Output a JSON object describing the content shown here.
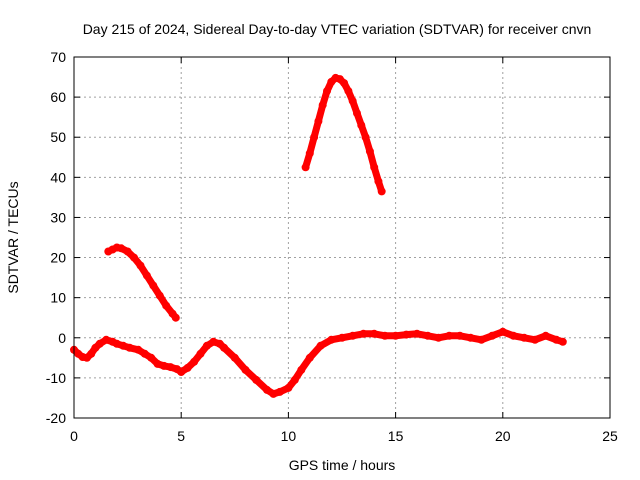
{
  "chart_data": {
    "type": "scatter",
    "title": "Day 215 of 2024, Sidereal Day-to-day VTEC variation (SDTVAR) for receiver cnvn",
    "xlabel": "GPS time / hours",
    "ylabel": "SDTVAR / TECUs",
    "xlim": [
      0,
      25
    ],
    "ylim": [
      -20,
      70
    ],
    "xticks": [
      0,
      5,
      10,
      15,
      20,
      25
    ],
    "yticks": [
      -20,
      -10,
      0,
      10,
      20,
      30,
      40,
      50,
      60,
      70
    ],
    "grid": true,
    "legend": "none",
    "series_color": "#ff0000",
    "series": [
      {
        "name": "segment-low-1",
        "x": [
          0.0,
          0.2,
          0.4,
          0.6,
          0.8,
          1.0,
          1.2,
          1.5,
          1.8,
          2.0,
          2.3,
          2.6,
          3.0,
          3.3,
          3.6,
          3.9,
          4.2,
          4.5,
          4.8,
          5.0
        ],
        "y": [
          -3.0,
          -4.0,
          -4.8,
          -5.0,
          -4.0,
          -2.5,
          -1.5,
          -0.5,
          -1.0,
          -1.5,
          -2.0,
          -2.5,
          -3.0,
          -4.0,
          -5.0,
          -6.5,
          -7.0,
          -7.3,
          -7.8,
          -8.5
        ]
      },
      {
        "name": "segment-low-2",
        "x": [
          5.0,
          5.3,
          5.6,
          5.9,
          6.2,
          6.5,
          6.8,
          7.0,
          7.5,
          8.0,
          8.5,
          9.0,
          9.3,
          9.6,
          10.0,
          10.3,
          10.6,
          11.0,
          11.5,
          12.0,
          12.5,
          13.0,
          13.5,
          14.0,
          14.5,
          15.0,
          15.5,
          16.0,
          16.5,
          17.0,
          17.5,
          18.0,
          18.5,
          19.0,
          19.5,
          20.0,
          20.5,
          21.0,
          21.5,
          22.0,
          22.5,
          22.8
        ],
        "y": [
          -8.5,
          -7.5,
          -6.0,
          -4.0,
          -2.0,
          -1.0,
          -1.5,
          -2.5,
          -5.0,
          -8.0,
          -10.5,
          -13.0,
          -14.0,
          -13.5,
          -12.5,
          -10.5,
          -8.0,
          -5.0,
          -2.0,
          -0.5,
          0.0,
          0.5,
          1.0,
          1.0,
          0.5,
          0.5,
          0.8,
          1.0,
          0.5,
          0.0,
          0.5,
          0.5,
          0.0,
          -0.5,
          0.5,
          1.5,
          0.5,
          0.0,
          -0.5,
          0.5,
          -0.5,
          -1.0
        ]
      },
      {
        "name": "segment-hump-1",
        "x": [
          1.6,
          1.8,
          2.0,
          2.2,
          2.5,
          2.8,
          3.1,
          3.4,
          3.7,
          4.0,
          4.3,
          4.6,
          4.75
        ],
        "y": [
          21.5,
          22.0,
          22.5,
          22.3,
          21.5,
          20.0,
          18.0,
          15.5,
          13.0,
          10.5,
          8.0,
          6.0,
          5.0
        ]
      },
      {
        "name": "segment-hump-2",
        "x": [
          10.8,
          11.0,
          11.2,
          11.4,
          11.6,
          11.8,
          12.0,
          12.2,
          12.4,
          12.6,
          12.8,
          13.0,
          13.2,
          13.4,
          13.6,
          13.8,
          14.0,
          14.2,
          14.35
        ],
        "y": [
          42.5,
          46.0,
          50.0,
          54.0,
          58.0,
          61.5,
          63.8,
          64.8,
          64.5,
          63.5,
          61.5,
          59.0,
          56.0,
          53.0,
          50.0,
          46.5,
          42.5,
          39.0,
          36.5
        ]
      }
    ]
  }
}
